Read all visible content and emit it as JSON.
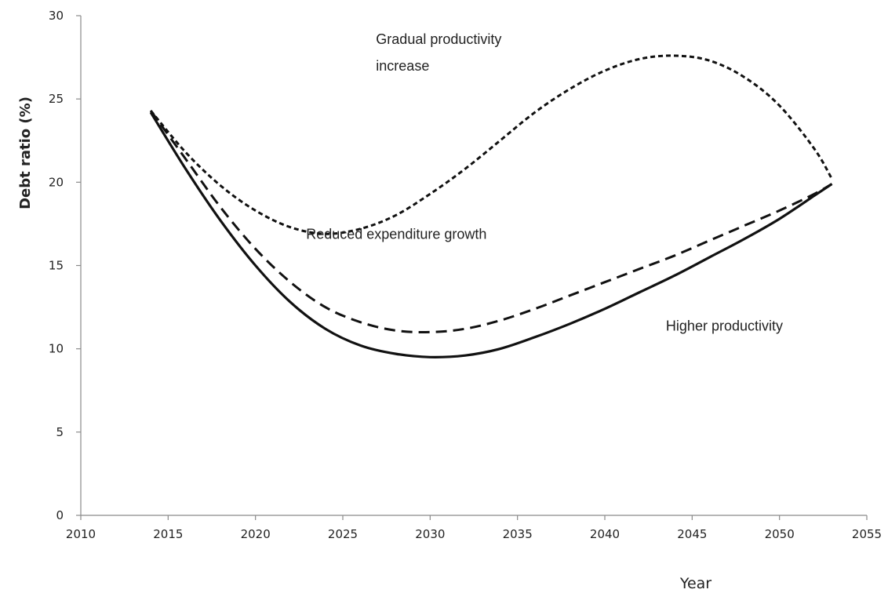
{
  "chart_data": {
    "type": "line",
    "xlabel": "Year",
    "ylabel": "Debt ratio (%)",
    "xlim": [
      2010,
      2055
    ],
    "ylim": [
      0,
      30
    ],
    "x_ticks": [
      "2010",
      "2015",
      "2020",
      "2025",
      "2030",
      "2035",
      "2040",
      "2045",
      "2050",
      "2055"
    ],
    "y_ticks": [
      "0",
      "5",
      "10",
      "15",
      "20",
      "25",
      "30"
    ],
    "grid": false,
    "legend": "none",
    "series": [
      {
        "name": "Gradual productivity increase",
        "style": "dotted",
        "color": "#111111",
        "x": [
          2014,
          2016,
          2018,
          2020,
          2022,
          2024,
          2026,
          2028,
          2030,
          2032,
          2034,
          2036,
          2038,
          2040,
          2042,
          2044,
          2046,
          2048,
          2050,
          2052,
          2053
        ],
        "y": [
          24.3,
          21.8,
          19.8,
          18.3,
          17.3,
          16.9,
          17.2,
          18.0,
          19.3,
          20.8,
          22.5,
          24.2,
          25.6,
          26.7,
          27.4,
          27.6,
          27.3,
          26.3,
          24.6,
          22.0,
          20.2
        ]
      },
      {
        "name": "Reduced expenditure growth",
        "style": "dashed",
        "color": "#111111",
        "x": [
          2014,
          2016,
          2018,
          2020,
          2022,
          2024,
          2026,
          2028,
          2030,
          2032,
          2034,
          2036,
          2038,
          2040,
          2042,
          2044,
          2046,
          2048,
          2050,
          2052,
          2053
        ],
        "y": [
          24.3,
          21.4,
          18.5,
          16.0,
          14.0,
          12.5,
          11.6,
          11.1,
          11.0,
          11.2,
          11.7,
          12.4,
          13.2,
          14.0,
          14.8,
          15.6,
          16.5,
          17.4,
          18.3,
          19.3,
          19.9
        ]
      },
      {
        "name": "Higher productivity",
        "style": "solid",
        "color": "#111111",
        "x": [
          2014,
          2016,
          2018,
          2020,
          2022,
          2024,
          2026,
          2028,
          2030,
          2032,
          2034,
          2036,
          2038,
          2040,
          2042,
          2044,
          2046,
          2048,
          2050,
          2052,
          2053
        ],
        "y": [
          24.2,
          20.8,
          17.7,
          15.0,
          12.8,
          11.2,
          10.2,
          9.7,
          9.5,
          9.6,
          10.0,
          10.7,
          11.5,
          12.4,
          13.4,
          14.4,
          15.5,
          16.6,
          17.8,
          19.2,
          19.9
        ]
      }
    ],
    "annotations": [
      {
        "lines": [
          "Gradual productivity",
          "increase"
        ],
        "x": 2026.9,
        "y": 28.3
      },
      {
        "lines": [
          "Reduced expenditure  growth"
        ],
        "x": 2022.9,
        "y": 16.6
      },
      {
        "lines": [
          "Higher productivity"
        ],
        "x": 2043.5,
        "y": 11.1
      }
    ]
  }
}
